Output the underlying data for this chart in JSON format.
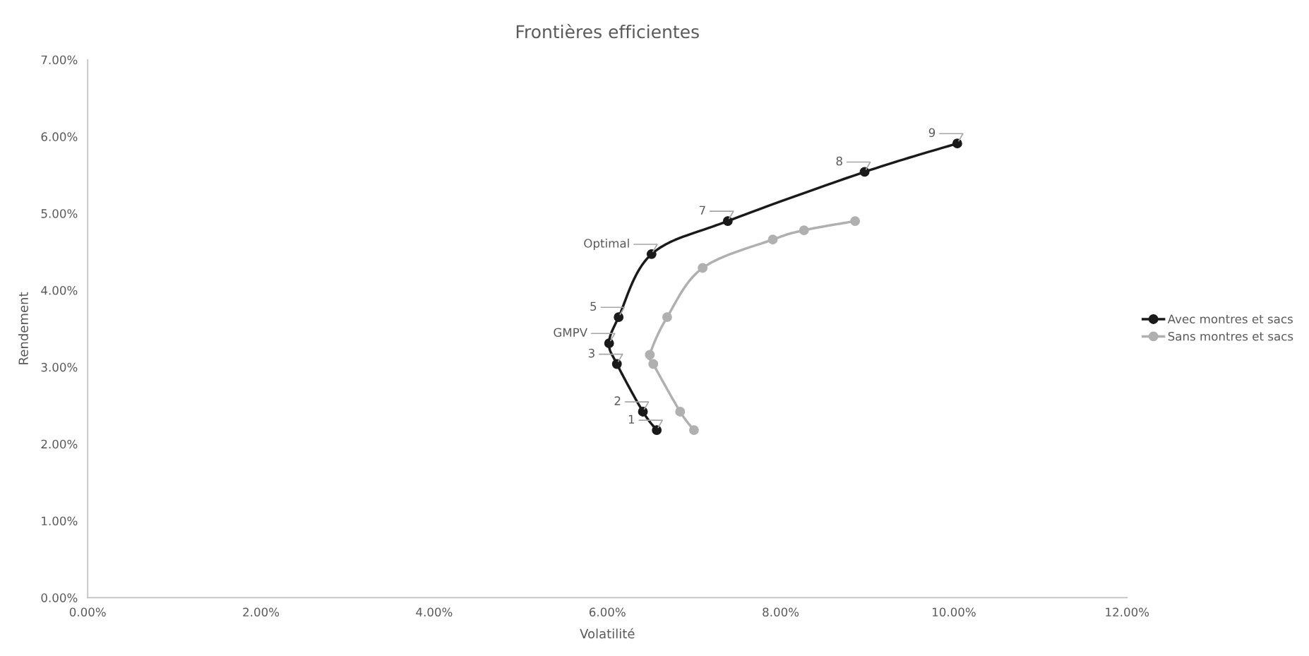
{
  "chart_data": {
    "type": "line",
    "title": "Frontières efficientes",
    "xlabel": "Volatilité",
    "ylabel": "Rendement",
    "series": [
      {
        "name": "Avec montres et sacs",
        "color": "#1a1a1a",
        "x": [
          6.57,
          6.41,
          6.11,
          6.02,
          6.13,
          6.51,
          7.39,
          8.97,
          10.04
        ],
        "values": [
          2.18,
          2.42,
          3.04,
          3.31,
          3.65,
          4.47,
          4.9,
          5.54,
          5.91
        ]
      },
      {
        "name": "Sans montres et sacs",
        "color": "#b0b0b0",
        "x": [
          7.0,
          6.84,
          6.53,
          6.49,
          6.69,
          7.1,
          7.91,
          8.27,
          8.86
        ],
        "values": [
          2.18,
          2.42,
          3.04,
          3.16,
          3.65,
          4.29,
          4.66,
          4.78,
          4.9
        ]
      }
    ],
    "annotations": [
      {
        "text": "1",
        "x": 6.57,
        "y": 2.18
      },
      {
        "text": "2",
        "x": 6.41,
        "y": 2.42
      },
      {
        "text": "3",
        "x": 6.11,
        "y": 3.04
      },
      {
        "text": "GMPV",
        "x": 6.02,
        "y": 3.31
      },
      {
        "text": "5",
        "x": 6.13,
        "y": 3.65
      },
      {
        "text": "Optimal",
        "x": 6.51,
        "y": 4.47
      },
      {
        "text": "7",
        "x": 7.39,
        "y": 4.9
      },
      {
        "text": "8",
        "x": 8.97,
        "y": 5.54
      },
      {
        "text": "9",
        "x": 10.04,
        "y": 5.91
      }
    ],
    "xlim": [
      0,
      12
    ],
    "xticks": [
      {
        "value": 0,
        "label": "0.00%"
      },
      {
        "value": 2,
        "label": "2.00%"
      },
      {
        "value": 4,
        "label": "4.00%"
      },
      {
        "value": 6,
        "label": "6.00%"
      },
      {
        "value": 8,
        "label": "8.00%"
      },
      {
        "value": 10,
        "label": "10.00%"
      },
      {
        "value": 12,
        "label": "12.00%"
      }
    ],
    "ylim": [
      0,
      7
    ],
    "yticks": [
      {
        "value": 0,
        "label": "0.00%"
      },
      {
        "value": 1,
        "label": "1.00%"
      },
      {
        "value": 2,
        "label": "2.00%"
      },
      {
        "value": 3,
        "label": "3.00%"
      },
      {
        "value": 4,
        "label": "4.00%"
      },
      {
        "value": 5,
        "label": "5.00%"
      },
      {
        "value": 6,
        "label": "6.00%"
      },
      {
        "value": 7,
        "label": "7.00%"
      }
    ],
    "grid": false,
    "legend": "right",
    "marker": "circle",
    "line_style": "solid"
  }
}
